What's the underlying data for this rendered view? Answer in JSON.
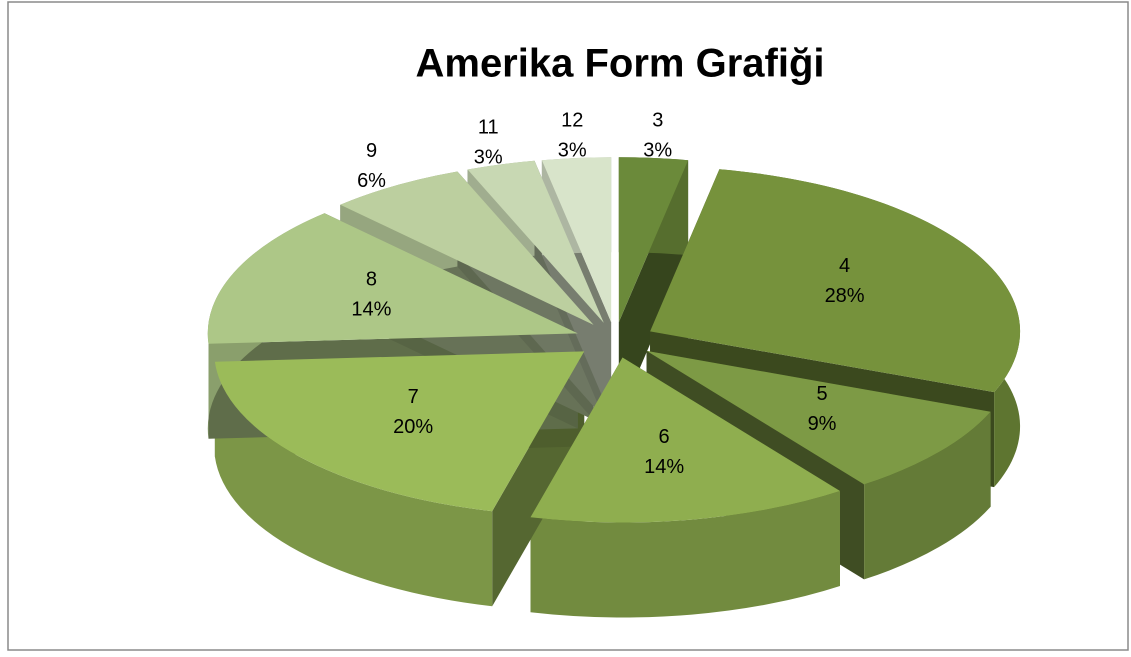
{
  "chart_data": {
    "type": "pie",
    "title": "Amerika Form Grafiği",
    "categories": [
      "3",
      "4",
      "5",
      "6",
      "7",
      "8",
      "9",
      "11",
      "12"
    ],
    "values": [
      3,
      28,
      9,
      14,
      20,
      14,
      6,
      3,
      3
    ],
    "value_labels": [
      "3%",
      "28%",
      "9%",
      "14%",
      "20%",
      "14%",
      "6%",
      "3%",
      "3%"
    ],
    "colors": [
      "#6b8a3a",
      "#76923c",
      "#7d9a45",
      "#8fae4f",
      "#9bbb59",
      "#adc787",
      "#bccf9f",
      "#c8d8b3",
      "#d8e4ca"
    ]
  }
}
